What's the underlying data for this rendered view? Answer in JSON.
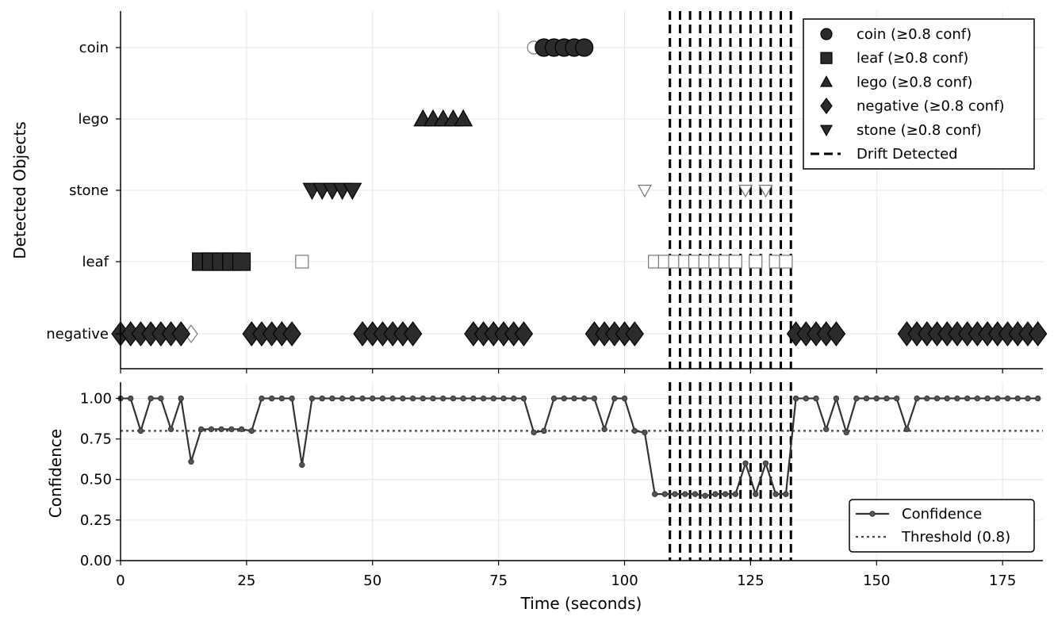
{
  "chart_data": [
    {
      "type": "scatter",
      "ylabel": "Detected Objects",
      "xlim": [
        0,
        183
      ],
      "categories": [
        "negative",
        "leaf",
        "stone",
        "lego",
        "coin"
      ],
      "grid": true,
      "legend_position": "top-right",
      "legend": [
        {
          "label": "coin (≥0.8 conf)",
          "marker": "circle"
        },
        {
          "label": "leaf (≥0.8 conf)",
          "marker": "square"
        },
        {
          "label": "lego (≥0.8 conf)",
          "marker": "triangle-up"
        },
        {
          "label": "negative (≥0.8 conf)",
          "marker": "diamond"
        },
        {
          "label": "stone (≥0.8 conf)",
          "marker": "triangle-down"
        },
        {
          "label": "Drift Detected",
          "marker": "dashed-line"
        }
      ],
      "series": [
        {
          "name": "coin (≥0.8 conf)",
          "category": "coin",
          "marker": "circle",
          "x": [
            84,
            86,
            88,
            90,
            92
          ]
        },
        {
          "name": "leaf (≥0.8 conf)",
          "category": "leaf",
          "marker": "square",
          "x": [
            16,
            18,
            20,
            22,
            24
          ]
        },
        {
          "name": "lego (≥0.8 conf)",
          "category": "lego",
          "marker": "triangle-up",
          "x": [
            60,
            62,
            64,
            66,
            68
          ]
        },
        {
          "name": "negative (≥0.8 conf)",
          "category": "negative",
          "marker": "diamond",
          "x": [
            0,
            2,
            4,
            6,
            8,
            10,
            12,
            26,
            28,
            30,
            32,
            34,
            48,
            50,
            52,
            54,
            56,
            58,
            70,
            72,
            74,
            76,
            78,
            80,
            94,
            96,
            98,
            100,
            102,
            134,
            136,
            138,
            140,
            142,
            156,
            158,
            160,
            162,
            164,
            166,
            168,
            170,
            172,
            174,
            176,
            178,
            180,
            182
          ]
        },
        {
          "name": "stone (≥0.8 conf)",
          "category": "stone",
          "marker": "triangle-down",
          "x": [
            38,
            40,
            42,
            44,
            46
          ]
        }
      ],
      "low_confidence": [
        {
          "category": "coin",
          "marker": "circle",
          "x": [
            82
          ]
        },
        {
          "category": "negative",
          "marker": "diamond",
          "x": [
            14
          ]
        },
        {
          "category": "leaf",
          "marker": "square",
          "x": [
            36,
            106,
            108,
            110,
            112,
            114,
            116,
            118,
            120,
            122,
            126,
            130,
            132
          ]
        },
        {
          "category": "stone",
          "marker": "triangle-down",
          "x": [
            104,
            124,
            128
          ]
        }
      ],
      "drift_x": [
        109,
        111,
        113,
        115,
        117,
        119,
        121,
        123,
        125,
        127,
        129,
        131,
        133
      ]
    },
    {
      "type": "line",
      "xlabel": "Time (seconds)",
      "ylabel": "Confidence",
      "xlim": [
        0,
        183
      ],
      "ylim": [
        0,
        1.1
      ],
      "xticks": [
        0,
        25,
        50,
        75,
        100,
        125,
        150,
        175
      ],
      "yticks": [
        "0.00",
        "0.25",
        "0.50",
        "0.75",
        "1.00"
      ],
      "grid": true,
      "legend_position": "bottom-right",
      "legend": [
        {
          "label": "Confidence",
          "style": "line-with-dots"
        },
        {
          "label": "Threshold (0.8)",
          "style": "dotted-line"
        }
      ],
      "threshold": 0.8,
      "series": [
        {
          "name": "Confidence",
          "x": [
            0,
            2,
            4,
            6,
            8,
            10,
            12,
            14,
            16,
            18,
            20,
            22,
            24,
            26,
            28,
            30,
            32,
            34,
            36,
            38,
            40,
            42,
            44,
            46,
            48,
            50,
            52,
            54,
            56,
            58,
            60,
            62,
            64,
            66,
            68,
            70,
            72,
            74,
            76,
            78,
            80,
            82,
            84,
            86,
            88,
            90,
            92,
            94,
            96,
            98,
            100,
            102,
            104,
            106,
            108,
            110,
            112,
            114,
            116,
            118,
            120,
            122,
            124,
            126,
            128,
            130,
            132,
            134,
            136,
            138,
            140,
            142,
            144,
            146,
            148,
            150,
            152,
            154,
            156,
            158,
            160,
            162,
            164,
            166,
            168,
            170,
            172,
            174,
            176,
            178,
            180,
            182
          ],
          "y": [
            1.0,
            1.0,
            0.8,
            1.0,
            1.0,
            0.81,
            1.0,
            0.61,
            0.81,
            0.81,
            0.81,
            0.81,
            0.81,
            0.8,
            1.0,
            1.0,
            1.0,
            1.0,
            0.59,
            1.0,
            1.0,
            1.0,
            1.0,
            1.0,
            1.0,
            1.0,
            1.0,
            1.0,
            1.0,
            1.0,
            1.0,
            1.0,
            1.0,
            1.0,
            1.0,
            1.0,
            1.0,
            1.0,
            1.0,
            1.0,
            1.0,
            0.79,
            0.8,
            1.0,
            1.0,
            1.0,
            1.0,
            1.0,
            0.81,
            1.0,
            1.0,
            0.8,
            0.79,
            0.41,
            0.41,
            0.41,
            0.41,
            0.41,
            0.4,
            0.41,
            0.41,
            0.41,
            0.6,
            0.41,
            0.6,
            0.41,
            0.41,
            1.0,
            1.0,
            1.0,
            0.81,
            1.0,
            0.79,
            1.0,
            1.0,
            1.0,
            1.0,
            1.0,
            0.81,
            1.0,
            1.0,
            1.0,
            1.0,
            1.0,
            1.0,
            1.0,
            1.0,
            1.0,
            1.0,
            1.0,
            1.0,
            1.0
          ]
        }
      ],
      "drift_x": [
        109,
        111,
        113,
        115,
        117,
        119,
        121,
        123,
        125,
        127,
        129,
        131,
        133
      ]
    }
  ]
}
